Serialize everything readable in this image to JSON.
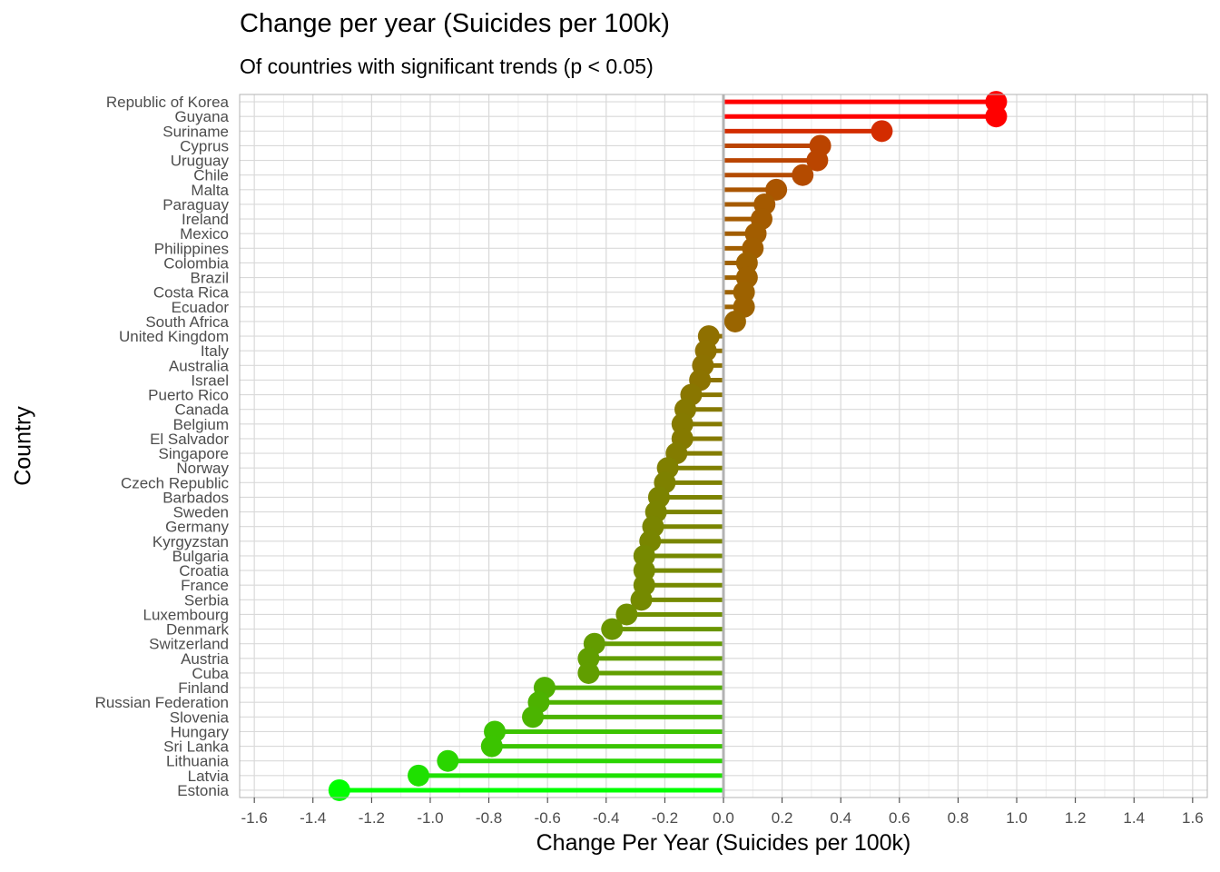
{
  "chart_data": {
    "type": "lollipop",
    "title": "Change per year (Suicides per 100k)",
    "subtitle": "Of countries with significant trends (p < 0.05)",
    "xlabel": "Change Per Year (Suicides per 100k)",
    "ylabel": "Country",
    "xlim": [
      -1.65,
      1.65
    ],
    "xticks": [
      -1.6,
      -1.4,
      -1.2,
      -1.0,
      -0.8,
      -0.6,
      -0.4,
      -0.2,
      0.0,
      0.2,
      0.4,
      0.6,
      0.8,
      1.0,
      1.2,
      1.4,
      1.6
    ],
    "xtick_labels": [
      "-1.6",
      "-1.4",
      "-1.2",
      "-1.0",
      "-0.8",
      "-0.6",
      "-0.4",
      "-0.2",
      "0.0",
      "0.2",
      "0.4",
      "0.6",
      "0.8",
      "1.0",
      "1.2",
      "1.4",
      "1.6"
    ],
    "grid": true,
    "colors": {
      "high": "#ff0000",
      "low": "#00ff00",
      "zero_line": "#b3b3b3",
      "panel_border": "#b3b3b3",
      "grid_major": "#d9d9d9",
      "grid_minor": "#ececec"
    },
    "categories": [
      "Republic of Korea",
      "Guyana",
      "Suriname",
      "Cyprus",
      "Uruguay",
      "Chile",
      "Malta",
      "Paraguay",
      "Ireland",
      "Mexico",
      "Philippines",
      "Colombia",
      "Brazil",
      "Costa Rica",
      "Ecuador",
      "South Africa",
      "United Kingdom",
      "Italy",
      "Australia",
      "Israel",
      "Puerto Rico",
      "Canada",
      "Belgium",
      "El Salvador",
      "Singapore",
      "Norway",
      "Czech Republic",
      "Barbados",
      "Sweden",
      "Germany",
      "Kyrgyzstan",
      "Bulgaria",
      "Croatia",
      "France",
      "Serbia",
      "Luxembourg",
      "Denmark",
      "Switzerland",
      "Austria",
      "Cuba",
      "Finland",
      "Russian Federation",
      "Slovenia",
      "Hungary",
      "Sri Lanka",
      "Lithuania",
      "Latvia",
      "Estonia"
    ],
    "values": [
      0.93,
      0.93,
      0.54,
      0.33,
      0.32,
      0.27,
      0.18,
      0.14,
      0.13,
      0.11,
      0.1,
      0.08,
      0.08,
      0.07,
      0.07,
      0.04,
      -0.05,
      -0.06,
      -0.07,
      -0.08,
      -0.11,
      -0.13,
      -0.14,
      -0.14,
      -0.16,
      -0.19,
      -0.2,
      -0.22,
      -0.23,
      -0.24,
      -0.25,
      -0.27,
      -0.27,
      -0.27,
      -0.28,
      -0.33,
      -0.38,
      -0.44,
      -0.46,
      -0.46,
      -0.61,
      -0.63,
      -0.65,
      -0.78,
      -0.79,
      -0.94,
      -1.04,
      -1.31
    ]
  }
}
